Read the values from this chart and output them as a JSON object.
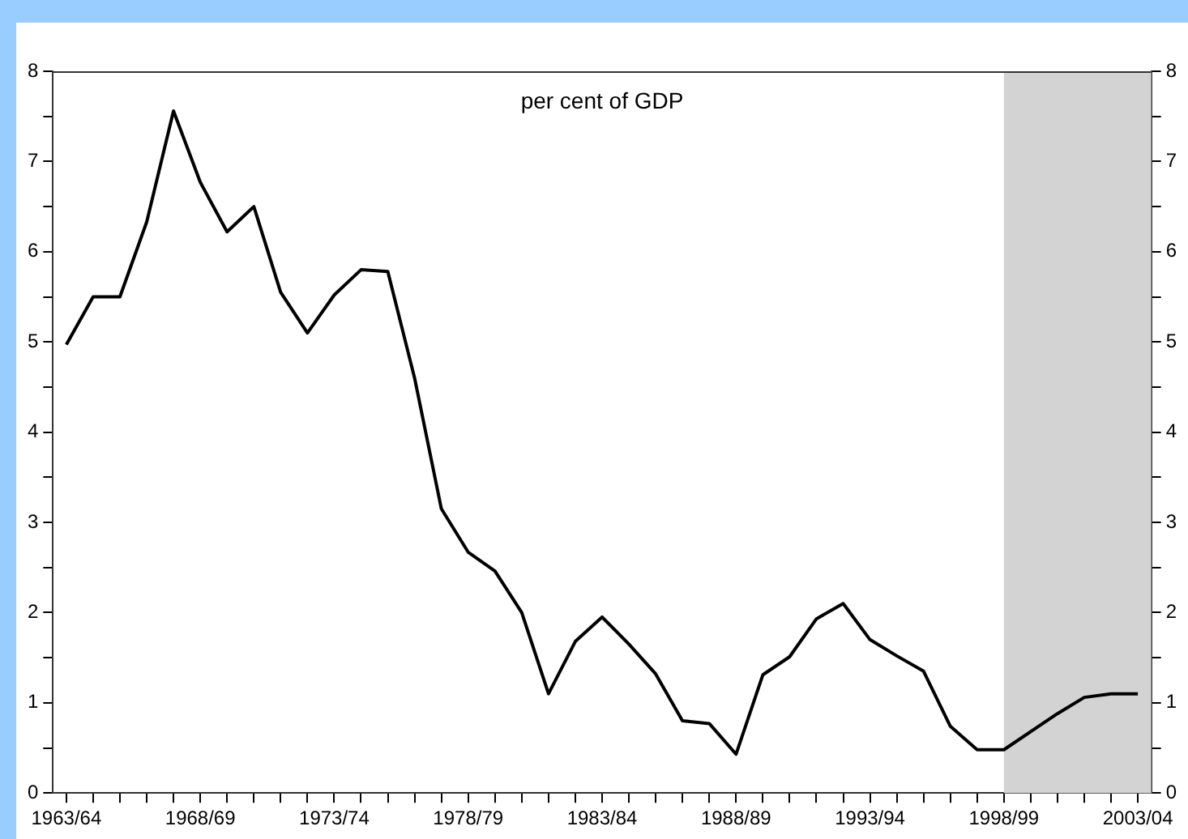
{
  "chart_data": {
    "type": "line",
    "annotations": [
      "per cent of GDP"
    ],
    "categories": [
      "1963/64",
      null,
      null,
      null,
      null,
      "1968/69",
      null,
      null,
      null,
      null,
      "1973/74",
      null,
      null,
      null,
      null,
      "1978/79",
      null,
      null,
      null,
      null,
      "1983/84",
      null,
      null,
      null,
      null,
      "1988/89",
      null,
      null,
      null,
      null,
      "1993/94",
      null,
      null,
      null,
      null,
      "1998/99",
      null,
      null,
      null,
      null,
      "2003/04"
    ],
    "series": [
      {
        "color": "#000000",
        "values": [
          4.97,
          5.5,
          5.5,
          6.33,
          7.56,
          6.77,
          6.22,
          6.5,
          5.55,
          5.1,
          5.52,
          5.8,
          5.78,
          4.6,
          3.15,
          2.67,
          2.46,
          2.0,
          1.1,
          1.68,
          1.95,
          1.65,
          1.32,
          0.8,
          0.77,
          0.43,
          1.31,
          1.51,
          1.93,
          2.1,
          1.7,
          1.52,
          1.35,
          0.74,
          0.48,
          0.48,
          0.68,
          0.88,
          1.06,
          1.1,
          1.1
        ]
      }
    ],
    "ylim": [
      0,
      8
    ],
    "yticks": [
      0,
      {
        "value": 0.5,
        "label": null
      },
      1,
      {
        "value": 1.5,
        "label": null
      },
      2,
      {
        "value": 2.5,
        "label": null
      },
      3,
      {
        "value": 3.5,
        "label": null
      },
      4,
      {
        "value": 4.5,
        "label": null
      },
      5,
      {
        "value": 5.5,
        "label": null
      },
      6,
      {
        "value": 6.5,
        "label": null
      },
      7,
      {
        "value": 7.5,
        "label": null
      },
      8
    ],
    "y2lim": [
      0,
      8
    ],
    "y2ticks": [
      0,
      {
        "value": 0.5,
        "label": null
      },
      1,
      {
        "value": 1.5,
        "label": null
      },
      2,
      {
        "value": 2.5,
        "label": null
      },
      3,
      {
        "value": 3.5,
        "label": null
      },
      4,
      {
        "value": 4.5,
        "label": null
      },
      5,
      {
        "value": 5.5,
        "label": null
      },
      6,
      {
        "value": 6.5,
        "label": null
      },
      7,
      {
        "value": 7.5,
        "label": null
      },
      8
    ],
    "bands": [
      {
        "axis": "x",
        "from": "1998/99",
        "to": "2003/04",
        "color": "#d3d3d3"
      }
    ],
    "grid": false,
    "legend": false,
    "marker": "none",
    "line_style": "solid"
  }
}
